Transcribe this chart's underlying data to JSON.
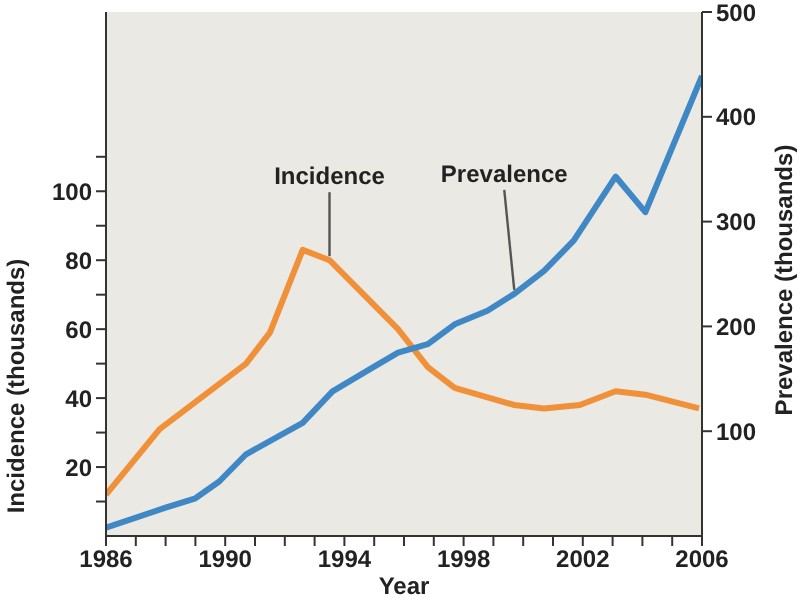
{
  "chart_data": {
    "type": "line",
    "xlabel": "Year",
    "ylabel": "Incidence (thousands)",
    "y2label": "Prevalence (thousands)",
    "xlim": [
      1986,
      2006
    ],
    "xticks": [
      1986,
      {
        "value": 1987,
        "label": null
      },
      {
        "value": 1988,
        "label": null
      },
      {
        "value": 1989,
        "label": null
      },
      1990,
      {
        "value": 1991,
        "label": null
      },
      {
        "value": 1992,
        "label": null
      },
      {
        "value": 1993,
        "label": null
      },
      1994,
      {
        "value": 1995,
        "label": null
      },
      {
        "value": 1996,
        "label": null
      },
      {
        "value": 1997,
        "label": null
      },
      1998,
      {
        "value": 1999,
        "label": null
      },
      {
        "value": 2000,
        "label": null
      },
      {
        "value": 2001,
        "label": null
      },
      2002,
      {
        "value": 2003,
        "label": null
      },
      {
        "value": 2004,
        "label": null
      },
      {
        "value": 2005,
        "label": null
      },
      2006
    ],
    "ylim": [
      0,
      152
    ],
    "yticks": [
      {
        "value": 10,
        "label": null
      },
      20,
      {
        "value": 30,
        "label": null
      },
      40,
      {
        "value": 50,
        "label": null
      },
      60,
      {
        "value": 70,
        "label": null
      },
      80,
      {
        "value": 90,
        "label": null
      },
      100,
      {
        "value": 110,
        "label": null
      }
    ],
    "y2lim": [
      0,
      500
    ],
    "y2ticks": [
      100,
      200,
      300,
      400,
      500
    ],
    "marker": "none",
    "line_style": "solid",
    "series": [
      {
        "name": "Incidence",
        "color": "#f0913a",
        "x": [
          1986,
          1987.8,
          1990.7,
          1991.5,
          1992.6,
          1993.5,
          1995.8,
          1996.8,
          1997.7,
          1999.7,
          2000.7,
          2001.9,
          2003.1,
          2004.1,
          2005.9
        ],
        "values": [
          12,
          31,
          50,
          59,
          83,
          80,
          60,
          49,
          43,
          38,
          37,
          38,
          42,
          41,
          37
        ]
      },
      {
        "name": "Prevalence",
        "color": "#3f88c5",
        "axis": "y2",
        "x": [
          1986,
          1988,
          1989,
          1989.8,
          1990.7,
          1992.6,
          1993.6,
          1994.9,
          1995.8,
          1996.8,
          1997.7,
          1998.8,
          1999.7,
          2000.7,
          2001.7,
          2003.1,
          2004.1,
          2006
        ],
        "values": [
          8,
          27,
          36,
          52,
          78,
          108,
          138,
          160,
          175,
          183,
          202,
          215,
          231,
          253,
          282,
          343,
          309,
          439
        ]
      }
    ]
  }
}
